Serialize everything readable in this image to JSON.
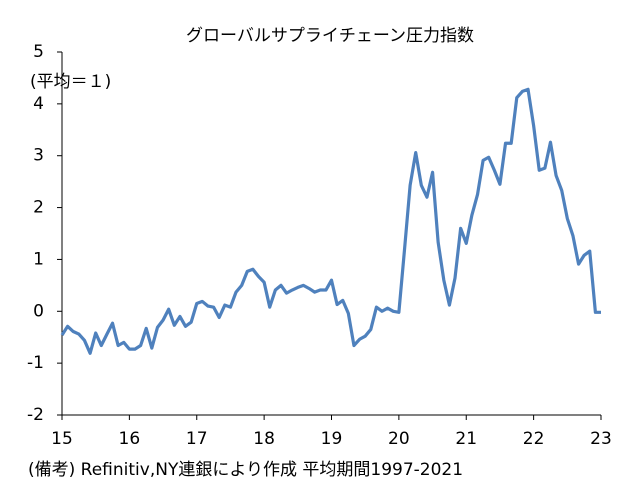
{
  "chart_data": {
    "type": "line",
    "title": "グローバルサプライチェーン圧力指数",
    "annotation": "(平均＝１)",
    "footnote": "(備考) Refinitiv,NY連銀により作成 平均期間1997-2021",
    "x": [
      15,
      15.083,
      15.167,
      15.25,
      15.333,
      15.417,
      15.5,
      15.583,
      15.667,
      15.75,
      15.833,
      15.917,
      16,
      16.083,
      16.167,
      16.25,
      16.333,
      16.417,
      16.5,
      16.583,
      16.667,
      16.75,
      16.833,
      16.917,
      17,
      17.083,
      17.167,
      17.25,
      17.333,
      17.417,
      17.5,
      17.583,
      17.667,
      17.75,
      17.833,
      17.917,
      18,
      18.083,
      18.167,
      18.25,
      18.333,
      18.417,
      18.5,
      18.583,
      18.667,
      18.75,
      18.833,
      18.917,
      19,
      19.083,
      19.167,
      19.25,
      19.333,
      19.417,
      19.5,
      19.583,
      19.667,
      19.75,
      19.833,
      19.917,
      20,
      20.083,
      20.167,
      20.25,
      20.333,
      20.417,
      20.5,
      20.583,
      20.667,
      20.75,
      20.833,
      20.917,
      21,
      21.083,
      21.167,
      21.25,
      21.333,
      21.417,
      21.5,
      21.583,
      21.667,
      21.75,
      21.833,
      21.917,
      22,
      22.083,
      22.167,
      22.25,
      22.333,
      22.417,
      22.5,
      22.583,
      22.667,
      22.75,
      22.833,
      22.917,
      23
    ],
    "series": [
      {
        "color": "#4f81bd",
        "values": [
          -0.46,
          -0.29,
          -0.39,
          -0.44,
          -0.56,
          -0.81,
          -0.42,
          -0.66,
          -0.44,
          -0.23,
          -0.66,
          -0.6,
          -0.73,
          -0.73,
          -0.66,
          -0.33,
          -0.71,
          -0.31,
          -0.17,
          0.04,
          -0.27,
          -0.1,
          -0.29,
          -0.21,
          0.15,
          0.19,
          0.1,
          0.08,
          -0.12,
          0.12,
          0.08,
          0.37,
          0.5,
          0.77,
          0.81,
          0.67,
          0.56,
          0.08,
          0.41,
          0.5,
          0.35,
          0.41,
          0.46,
          0.5,
          0.44,
          0.37,
          0.41,
          0.41,
          0.6,
          0.13,
          0.21,
          -0.04,
          -0.66,
          -0.54,
          -0.48,
          -0.35,
          0.08,
          0,
          0.06,
          0,
          -0.02,
          1.18,
          2.43,
          3.06,
          2.43,
          2.2,
          2.68,
          1.33,
          0.6,
          0.12,
          0.64,
          1.6,
          1.31,
          1.85,
          2.25,
          2.91,
          2.97,
          2.72,
          2.45,
          3.24,
          3.24,
          4.12,
          4.24,
          4.28,
          3.58,
          2.72,
          2.76,
          3.26,
          2.62,
          2.33,
          1.79,
          1.46,
          0.91,
          1.08,
          1.16,
          -0.02,
          -0.02
        ]
      }
    ],
    "xlim": [
      15,
      23
    ],
    "xticks": [
      15,
      16,
      17,
      18,
      19,
      20,
      21,
      22,
      23
    ],
    "ylim": [
      -2,
      5
    ],
    "yticks": [
      -2,
      -1,
      0,
      1,
      2,
      3,
      4,
      5
    ]
  }
}
